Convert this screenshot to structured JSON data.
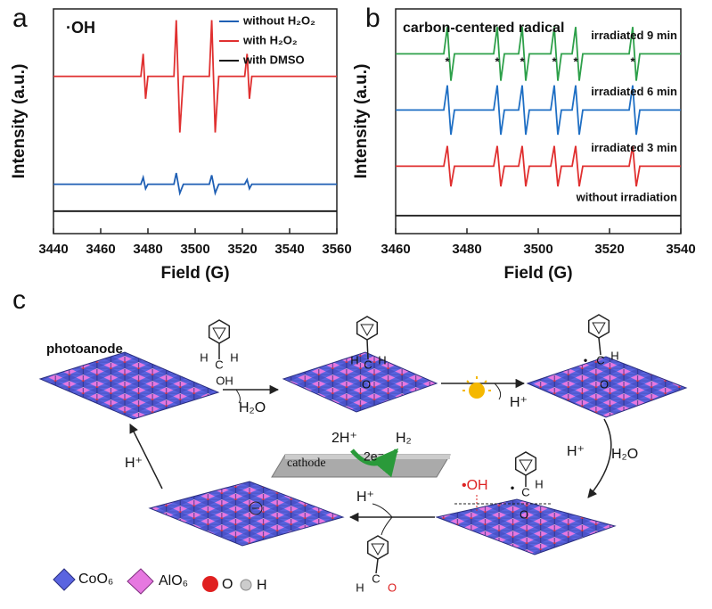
{
  "chart_data": [
    {
      "type": "line",
      "panel_label": "a",
      "title": "·OH",
      "xlabel": "Field (G)",
      "ylabel": "Intensity (a.u.)",
      "x": [
        3440,
        3477,
        3478,
        3479,
        3480,
        3491,
        3492,
        3493.5,
        3495,
        3506,
        3507,
        3508.5,
        3510,
        3521,
        3522,
        3523,
        3524,
        3560
      ],
      "series": [
        {
          "name": "without H₂O₂",
          "color": "#1f5fb4",
          "values": [
            2.2,
            2.2,
            2.5,
            2.0,
            2.2,
            2.2,
            2.7,
            1.8,
            2.2,
            2.2,
            2.6,
            1.8,
            2.2,
            2.2,
            2.4,
            2.0,
            2.2,
            2.2
          ]
        },
        {
          "name": "with H₂O₂",
          "color": "#e03030",
          "values": [
            7,
            7,
            8,
            6,
            7,
            7,
            9.5,
            4.5,
            7,
            7,
            9.5,
            4.5,
            7,
            7,
            8,
            6,
            7,
            7
          ]
        },
        {
          "name": "with DMSO",
          "color": "#111111",
          "values": [
            1,
            1,
            1,
            1,
            1,
            1,
            1,
            1,
            1,
            1,
            1,
            1,
            1,
            1,
            1,
            1,
            1,
            1
          ]
        }
      ],
      "xlim": [
        3440,
        3560
      ],
      "xticks": [
        3440,
        3460,
        3480,
        3500,
        3520,
        3540,
        3560
      ],
      "ylim": [
        0,
        10
      ],
      "legend": "upper right"
    },
    {
      "type": "line",
      "panel_label": "b",
      "title": "carbon-centered radical",
      "xlabel": "Field (G)",
      "ylabel": "Intensity (a.u.)",
      "x": [
        3460,
        3473.5,
        3474.5,
        3475.5,
        3476.5,
        3487.5,
        3488.5,
        3489.5,
        3490.5,
        3494.5,
        3495.5,
        3496.5,
        3497.5,
        3503.5,
        3504.5,
        3505.5,
        3506.5,
        3509.5,
        3510.5,
        3511.5,
        3512.5,
        3525.5,
        3526.5,
        3527.5,
        3528.5,
        3540
      ],
      "series": [
        {
          "name": "irradiated 9 min",
          "color": "#2ea04a",
          "values": [
            8,
            8,
            9.2,
            6.8,
            8,
            8,
            9.2,
            6.8,
            8,
            8,
            9.2,
            6.8,
            8,
            8,
            9.2,
            6.8,
            8,
            8,
            9.2,
            6.8,
            8,
            8,
            9.2,
            6.8,
            8,
            8
          ]
        },
        {
          "name": "irradiated 6 min",
          "color": "#1f6fc4",
          "values": [
            5.5,
            5.5,
            6.6,
            4.4,
            5.5,
            5.5,
            6.6,
            4.4,
            5.5,
            5.5,
            6.6,
            4.4,
            5.5,
            5.5,
            6.6,
            4.4,
            5.5,
            5.5,
            6.6,
            4.4,
            5.5,
            5.5,
            6.6,
            4.4,
            5.5,
            5.5
          ]
        },
        {
          "name": "irradiated 3 min",
          "color": "#e03030",
          "values": [
            3,
            3,
            3.9,
            2.1,
            3,
            3,
            3.9,
            2.1,
            3,
            3,
            3.9,
            2.1,
            3,
            3,
            3.9,
            2.1,
            3,
            3,
            3.9,
            2.1,
            3,
            3,
            3.9,
            2.1,
            3,
            3
          ]
        },
        {
          "name": "without irradiation",
          "color": "#222222",
          "values": [
            0.8,
            0.8,
            0.8,
            0.8,
            0.8,
            0.8,
            0.8,
            0.8,
            0.8,
            0.8,
            0.8,
            0.8,
            0.8,
            0.8,
            0.8,
            0.8,
            0.8,
            0.8,
            0.8,
            0.8,
            0.8,
            0.8,
            0.8,
            0.8,
            0.8,
            0.8
          ]
        }
      ],
      "annotations": [
        {
          "text": "*",
          "x": 3474.5
        },
        {
          "text": "*",
          "x": 3488.5
        },
        {
          "text": "*",
          "x": 3495.5
        },
        {
          "text": "*",
          "x": 3504.5
        },
        {
          "text": "*",
          "x": 3510.5
        },
        {
          "text": "*",
          "x": 3526.5
        }
      ],
      "xlim": [
        3460,
        3540
      ],
      "xticks": [
        3460,
        3480,
        3500,
        3520,
        3540
      ],
      "ylim": [
        0,
        10
      ]
    }
  ],
  "scheme": {
    "label": "c",
    "photoanode": "photoanode",
    "cathode": "cathode",
    "cathode_in": "2H⁺",
    "cathode_out": "H₂",
    "electrons": "2e⁻",
    "step1_out": "H₂O",
    "step2_out": "H⁺",
    "step3_out_h": "H⁺",
    "step3_out_w": "H₂O",
    "radical": "•OH",
    "step5_out": "H⁺",
    "step6_out": "H⁺",
    "molecules": [
      {
        "atoms": [
          "H",
          "C",
          "H",
          "OH"
        ]
      },
      {
        "atoms": [
          "H",
          "C",
          "H",
          "O"
        ]
      },
      {
        "atoms": [
          "•",
          "C",
          "H",
          "O"
        ]
      },
      {
        "atoms": [
          "•",
          "C",
          "H",
          "O"
        ]
      },
      {
        "atoms": [
          "H",
          "C",
          "O"
        ]
      }
    ],
    "legend": [
      "CoO₆",
      "AlO₆",
      "O",
      "H"
    ]
  }
}
